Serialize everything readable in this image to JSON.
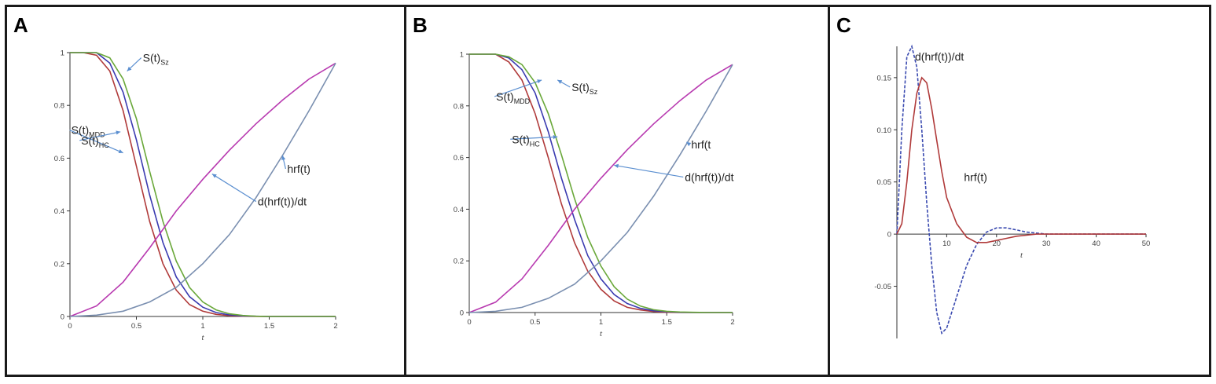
{
  "chart_data": [
    {
      "panel": "A",
      "type": "line",
      "xlabel": "t",
      "xlim": [
        0,
        2
      ],
      "ylim": [
        0,
        1
      ],
      "xticks": [
        "0",
        "0.5",
        "1",
        "1.5",
        "2"
      ],
      "yticks": [
        "0",
        "0.2",
        "0.4",
        "0.6",
        "0.8",
        "1"
      ],
      "colors": {
        "hc": "#b03a3a",
        "mdd": "#3a3ab0",
        "sz": "#6aa83a",
        "dhrf": "#b83ab0",
        "hrf": "#7a8fb0"
      },
      "series": [
        {
          "key": "hc",
          "x": [
            0,
            0.1,
            0.2,
            0.3,
            0.4,
            0.5,
            0.6,
            0.7,
            0.8,
            0.9,
            1.0,
            1.1,
            1.2,
            1.3,
            1.4,
            1.5,
            1.6,
            1.7,
            1.8,
            1.9,
            2.0
          ],
          "y": [
            1.0,
            1.0,
            0.99,
            0.93,
            0.78,
            0.57,
            0.36,
            0.2,
            0.1,
            0.045,
            0.02,
            0.008,
            0.003,
            0.001,
            0,
            0,
            0,
            0,
            0,
            0,
            0
          ]
        },
        {
          "key": "mdd",
          "x": [
            0,
            0.1,
            0.2,
            0.3,
            0.4,
            0.5,
            0.6,
            0.7,
            0.8,
            0.9,
            1.0,
            1.1,
            1.2,
            1.3,
            1.4,
            1.5,
            1.6,
            1.7,
            1.8,
            1.9,
            2.0
          ],
          "y": [
            1.0,
            1.0,
            1.0,
            0.96,
            0.85,
            0.67,
            0.46,
            0.28,
            0.15,
            0.075,
            0.035,
            0.015,
            0.006,
            0.002,
            0.001,
            0,
            0,
            0,
            0,
            0,
            0
          ]
        },
        {
          "key": "sz",
          "x": [
            0,
            0.1,
            0.2,
            0.3,
            0.4,
            0.5,
            0.6,
            0.7,
            0.8,
            0.9,
            1.0,
            1.1,
            1.2,
            1.3,
            1.4,
            1.5,
            1.6,
            1.7,
            1.8,
            1.9,
            2.0
          ],
          "y": [
            1.0,
            1.0,
            1.0,
            0.98,
            0.9,
            0.75,
            0.55,
            0.36,
            0.21,
            0.11,
            0.055,
            0.025,
            0.01,
            0.004,
            0.001,
            0,
            0,
            0,
            0,
            0,
            0
          ]
        },
        {
          "key": "dhrf",
          "x": [
            0,
            0.2,
            0.4,
            0.6,
            0.8,
            1.0,
            1.2,
            1.4,
            1.6,
            1.8,
            2.0
          ],
          "y": [
            0,
            0.04,
            0.13,
            0.26,
            0.4,
            0.52,
            0.63,
            0.73,
            0.82,
            0.9,
            0.96
          ]
        },
        {
          "key": "hrf",
          "x": [
            0,
            0.2,
            0.4,
            0.6,
            0.8,
            1.0,
            1.2,
            1.4,
            1.6,
            1.8,
            2.0
          ],
          "y": [
            0,
            0.005,
            0.02,
            0.055,
            0.11,
            0.2,
            0.31,
            0.45,
            0.61,
            0.78,
            0.96
          ]
        }
      ],
      "annotations": [
        {
          "main": "S(t)",
          "sub": "Sz",
          "at": [
            0.43,
            0.93
          ]
        },
        {
          "main": "S(t)",
          "sub": "MDD",
          "at": [
            0.4,
            0.62
          ]
        },
        {
          "main": "S(t)",
          "sub": "HC",
          "at": [
            0.38,
            0.7
          ]
        },
        {
          "main": "hrf(t)",
          "sub": "",
          "at": [
            1.6,
            0.61
          ]
        },
        {
          "main": "d(hrf(t))/dt",
          "sub": "",
          "at": [
            1.07,
            0.54
          ]
        }
      ]
    },
    {
      "panel": "B",
      "type": "line",
      "xlabel": "t",
      "xlim": [
        0,
        2
      ],
      "ylim": [
        0,
        1
      ],
      "xticks": [
        "0",
        "0.5",
        "1",
        "1.5",
        "2"
      ],
      "yticks": [
        "0",
        "0.2",
        "0.4",
        "0.6",
        "0.8",
        "1"
      ],
      "colors": {
        "hc": "#b03a3a",
        "mdd": "#3a3ab0",
        "sz": "#6aa83a",
        "dhrf": "#b83ab0",
        "hrf": "#7a8fb0"
      },
      "series": [
        {
          "key": "hc",
          "x": [
            0,
            0.1,
            0.2,
            0.3,
            0.4,
            0.5,
            0.6,
            0.7,
            0.8,
            0.9,
            1.0,
            1.1,
            1.2,
            1.3,
            1.4,
            1.5,
            1.6,
            1.7,
            1.8,
            1.9,
            2.0
          ],
          "y": [
            1.0,
            1.0,
            1.0,
            0.97,
            0.9,
            0.77,
            0.6,
            0.42,
            0.27,
            0.16,
            0.09,
            0.045,
            0.02,
            0.01,
            0.004,
            0.001,
            0,
            0,
            0,
            0,
            0
          ]
        },
        {
          "key": "mdd",
          "x": [
            0,
            0.1,
            0.2,
            0.3,
            0.4,
            0.5,
            0.6,
            0.7,
            0.8,
            0.9,
            1.0,
            1.1,
            1.2,
            1.3,
            1.4,
            1.5,
            1.6,
            1.7,
            1.8,
            1.9,
            2.0
          ],
          "y": [
            1.0,
            1.0,
            1.0,
            0.985,
            0.94,
            0.85,
            0.7,
            0.52,
            0.36,
            0.22,
            0.13,
            0.07,
            0.035,
            0.016,
            0.007,
            0.003,
            0.001,
            0,
            0,
            0,
            0
          ]
        },
        {
          "key": "sz",
          "x": [
            0,
            0.1,
            0.2,
            0.3,
            0.4,
            0.5,
            0.6,
            0.7,
            0.8,
            0.9,
            1.0,
            1.1,
            1.2,
            1.3,
            1.4,
            1.5,
            1.6,
            1.7,
            1.8,
            1.9,
            2.0
          ],
          "y": [
            1.0,
            1.0,
            1.0,
            0.99,
            0.96,
            0.89,
            0.77,
            0.61,
            0.44,
            0.29,
            0.18,
            0.1,
            0.052,
            0.025,
            0.011,
            0.005,
            0.002,
            0.001,
            0,
            0,
            0
          ]
        },
        {
          "key": "dhrf",
          "x": [
            0,
            0.2,
            0.4,
            0.6,
            0.8,
            1.0,
            1.2,
            1.4,
            1.6,
            1.8,
            2.0
          ],
          "y": [
            0,
            0.04,
            0.13,
            0.26,
            0.4,
            0.52,
            0.63,
            0.73,
            0.82,
            0.9,
            0.96
          ]
        },
        {
          "key": "hrf",
          "x": [
            0,
            0.2,
            0.4,
            0.6,
            0.8,
            1.0,
            1.2,
            1.4,
            1.6,
            1.8,
            2.0
          ],
          "y": [
            0,
            0.005,
            0.02,
            0.055,
            0.11,
            0.2,
            0.31,
            0.45,
            0.61,
            0.78,
            0.96
          ]
        }
      ],
      "annotations": [
        {
          "main": "S(t)",
          "sub": "Sz",
          "at": [
            0.67,
            0.9
          ]
        },
        {
          "main": "S(t)",
          "sub": "MDD",
          "at": [
            0.55,
            0.9
          ]
        },
        {
          "main": "S(t)",
          "sub": "HC",
          "at": [
            0.67,
            0.68
          ]
        },
        {
          "main": "hrf(t",
          "sub": "",
          "at": [
            1.65,
            0.66
          ]
        },
        {
          "main": "d(hrf(t))/dt",
          "sub": "",
          "at": [
            1.1,
            0.57
          ]
        }
      ]
    },
    {
      "panel": "C",
      "type": "line",
      "xlabel": "t",
      "xlim": [
        0,
        50
      ],
      "ylim": [
        -0.1,
        0.18
      ],
      "xticks": [
        "10",
        "20",
        "30",
        "40",
        "50"
      ],
      "yticks": [
        "-0.05",
        "0",
        "0.05",
        "0.10",
        "0.15"
      ],
      "colors": {
        "dhrf": "#3a4ab0",
        "hrf": "#b03a3a"
      },
      "series": [
        {
          "key": "dhrf",
          "x": [
            0,
            1,
            2,
            3,
            4,
            5,
            6,
            7,
            8,
            9,
            10,
            12,
            14,
            16,
            18,
            20,
            22,
            24,
            26,
            28,
            30,
            35,
            40,
            50
          ],
          "y": [
            0,
            0.1,
            0.17,
            0.18,
            0.16,
            0.1,
            0.03,
            -0.03,
            -0.075,
            -0.095,
            -0.09,
            -0.06,
            -0.03,
            -0.01,
            0.002,
            0.006,
            0.006,
            0.004,
            0.002,
            0.001,
            0,
            0,
            0,
            0
          ]
        },
        {
          "key": "hrf",
          "x": [
            0,
            1,
            2,
            3,
            4,
            5,
            6,
            7,
            8,
            9,
            10,
            12,
            14,
            16,
            18,
            20,
            22,
            24,
            26,
            28,
            30,
            35,
            40,
            50
          ],
          "y": [
            0,
            0.01,
            0.05,
            0.1,
            0.135,
            0.15,
            0.145,
            0.12,
            0.09,
            0.06,
            0.035,
            0.01,
            -0.003,
            -0.008,
            -0.008,
            -0.006,
            -0.004,
            -0.002,
            -0.001,
            0,
            0,
            0,
            0,
            0
          ]
        }
      ],
      "annotations": [
        {
          "main": "d(hrf(t))/dt",
          "sub": "",
          "at": [
            3,
            0.165
          ]
        },
        {
          "main": "hrf(t)",
          "sub": "",
          "at": [
            10,
            0.075
          ]
        }
      ]
    }
  ]
}
